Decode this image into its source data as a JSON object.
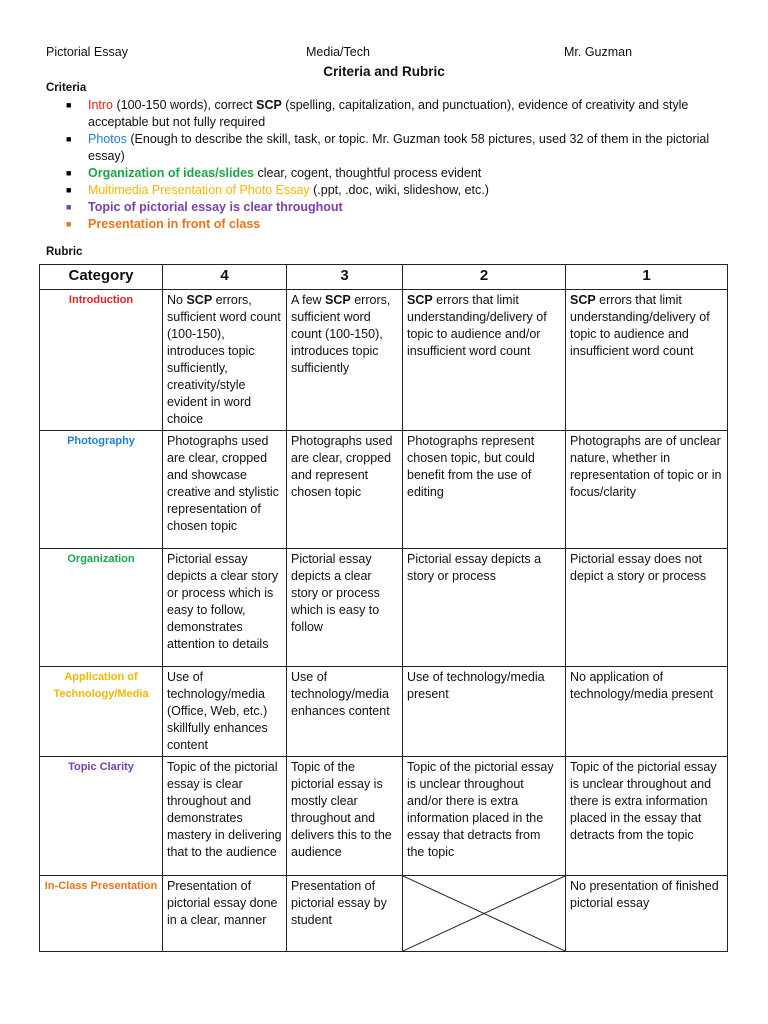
{
  "header": {
    "left": "Pictorial Essay",
    "center": "Media/Tech",
    "right": "Mr. Guzman",
    "title": "Criteria and Rubric"
  },
  "criteria": {
    "label": "Criteria",
    "items": [
      {
        "bullet_color": "#000000",
        "segments": [
          {
            "t": "Intro",
            "c": "#e8201e"
          },
          {
            "t": " (100-150 words), correct "
          },
          {
            "t": "SCP",
            "b": true
          },
          {
            "t": " (spelling, capitalization, and punctuation), evidence of creativity and style acceptable but not fully required"
          }
        ]
      },
      {
        "bullet_color": "#000000",
        "segments": [
          {
            "t": "Photos",
            "c": "#1f7fd0"
          },
          {
            "t": " (Enough to describe the skill, task, or topic.  Mr. Guzman took 58 pictures, used 32 of them in the pictorial essay)"
          }
        ]
      },
      {
        "bullet_color": "#000000",
        "segments": [
          {
            "t": "Organization of ideas/slides",
            "c": "#1aa64a",
            "b": true
          },
          {
            "t": " clear, cogent, thoughtful process evident"
          }
        ]
      },
      {
        "bullet_color": "#000000",
        "segments": [
          {
            "t": "Multimedia Presentation of Photo Essay",
            "c": "#f5b800"
          },
          {
            "t": " (.ppt, .doc, wiki, slideshow, etc.)"
          }
        ]
      },
      {
        "bullet_color": "#7a3fb0",
        "segments": [
          {
            "t": "Topic of pictorial essay is clear throughout",
            "c": "#7a3fb0",
            "b": true
          }
        ]
      },
      {
        "bullet_color": "#e8751a",
        "segments": [
          {
            "t": "Presentation in front of class",
            "c": "#e8751a",
            "b": true
          }
        ]
      }
    ]
  },
  "rubric": {
    "label": "Rubric",
    "columns": [
      "Category",
      "4",
      "3",
      "2",
      "1"
    ],
    "rows": [
      {
        "category": "Introduction",
        "color": "#e8201e",
        "cells": [
          [
            {
              "t": "No "
            },
            {
              "t": "SCP",
              "b": true
            },
            {
              "t": " errors, sufficient word count (100-150), introduces topic sufficiently, creativity/style evident in word choice"
            }
          ],
          [
            {
              "t": "A few "
            },
            {
              "t": "SCP",
              "b": true
            },
            {
              "t": " errors, sufficient word count (100-150), introduces topic sufficiently"
            }
          ],
          [
            {
              "t": "SCP",
              "b": true
            },
            {
              "t": " errors that limit understanding/delivery of topic to audience and/or insufficient word count"
            }
          ],
          [
            {
              "t": "SCP",
              "b": true
            },
            {
              "t": " errors that limit understanding/delivery of topic to audience and insufficient word count"
            }
          ]
        ]
      },
      {
        "category": "Photography",
        "color": "#1f7fd0",
        "cells": [
          [
            {
              "t": "Photographs used are clear, cropped and showcase creative and stylistic representation of chosen topic"
            }
          ],
          [
            {
              "t": "Photographs used are clear, cropped and represent chosen topic"
            }
          ],
          [
            {
              "t": "Photographs represent chosen topic,  but could benefit from the use of editing"
            }
          ],
          [
            {
              "t": "Photographs are of unclear nature, whether in representation of topic or in focus/clarity"
            }
          ]
        ]
      },
      {
        "category": "Organization",
        "color": "#1aa64a",
        "cells": [
          [
            {
              "t": "Pictorial essay depicts a clear story or process which is easy to follow, demonstrates attention to details"
            }
          ],
          [
            {
              "t": "Pictorial essay depicts a clear story or process which is easy to follow"
            }
          ],
          [
            {
              "t": "Pictorial essay depicts a story or process"
            }
          ],
          [
            {
              "t": "Pictorial essay does not depict a story or process"
            }
          ]
        ]
      },
      {
        "category": "Application of Technology/Media",
        "color": "#f5b800",
        "cells": [
          [
            {
              "t": "Use of technology/media (Office, Web, etc.) skillfully enhances content"
            }
          ],
          [
            {
              "t": "Use of technology/media enhances content"
            }
          ],
          [
            {
              "t": "Use of technology/media present"
            }
          ],
          [
            {
              "t": "No application of technology/media present"
            }
          ]
        ]
      },
      {
        "category": "Topic Clarity",
        "color": "#7a3fb0",
        "cells": [
          [
            {
              "t": "Topic of the pictorial essay is clear throughout and demonstrates mastery in delivering that to the audience"
            }
          ],
          [
            {
              "t": "Topic of the pictorial essay is mostly clear throughout and delivers this to the audience"
            }
          ],
          [
            {
              "t": "Topic of the pictorial essay is unclear throughout and/or there is extra information placed in the essay that detracts from the topic"
            }
          ],
          [
            {
              "t": "Topic of the pictorial essay is unclear throughout and there is extra information placed in the essay that detracts from the topic"
            }
          ]
        ]
      },
      {
        "category": "In-Class Presentation",
        "color": "#e8751a",
        "cells": [
          [
            {
              "t": "Presentation of pictorial essay done in a clear, manner"
            }
          ],
          [
            {
              "t": "Presentation of pictorial essay by student"
            }
          ],
          null,
          [
            {
              "t": "No presentation of finished pictorial essay"
            }
          ]
        ]
      }
    ]
  }
}
